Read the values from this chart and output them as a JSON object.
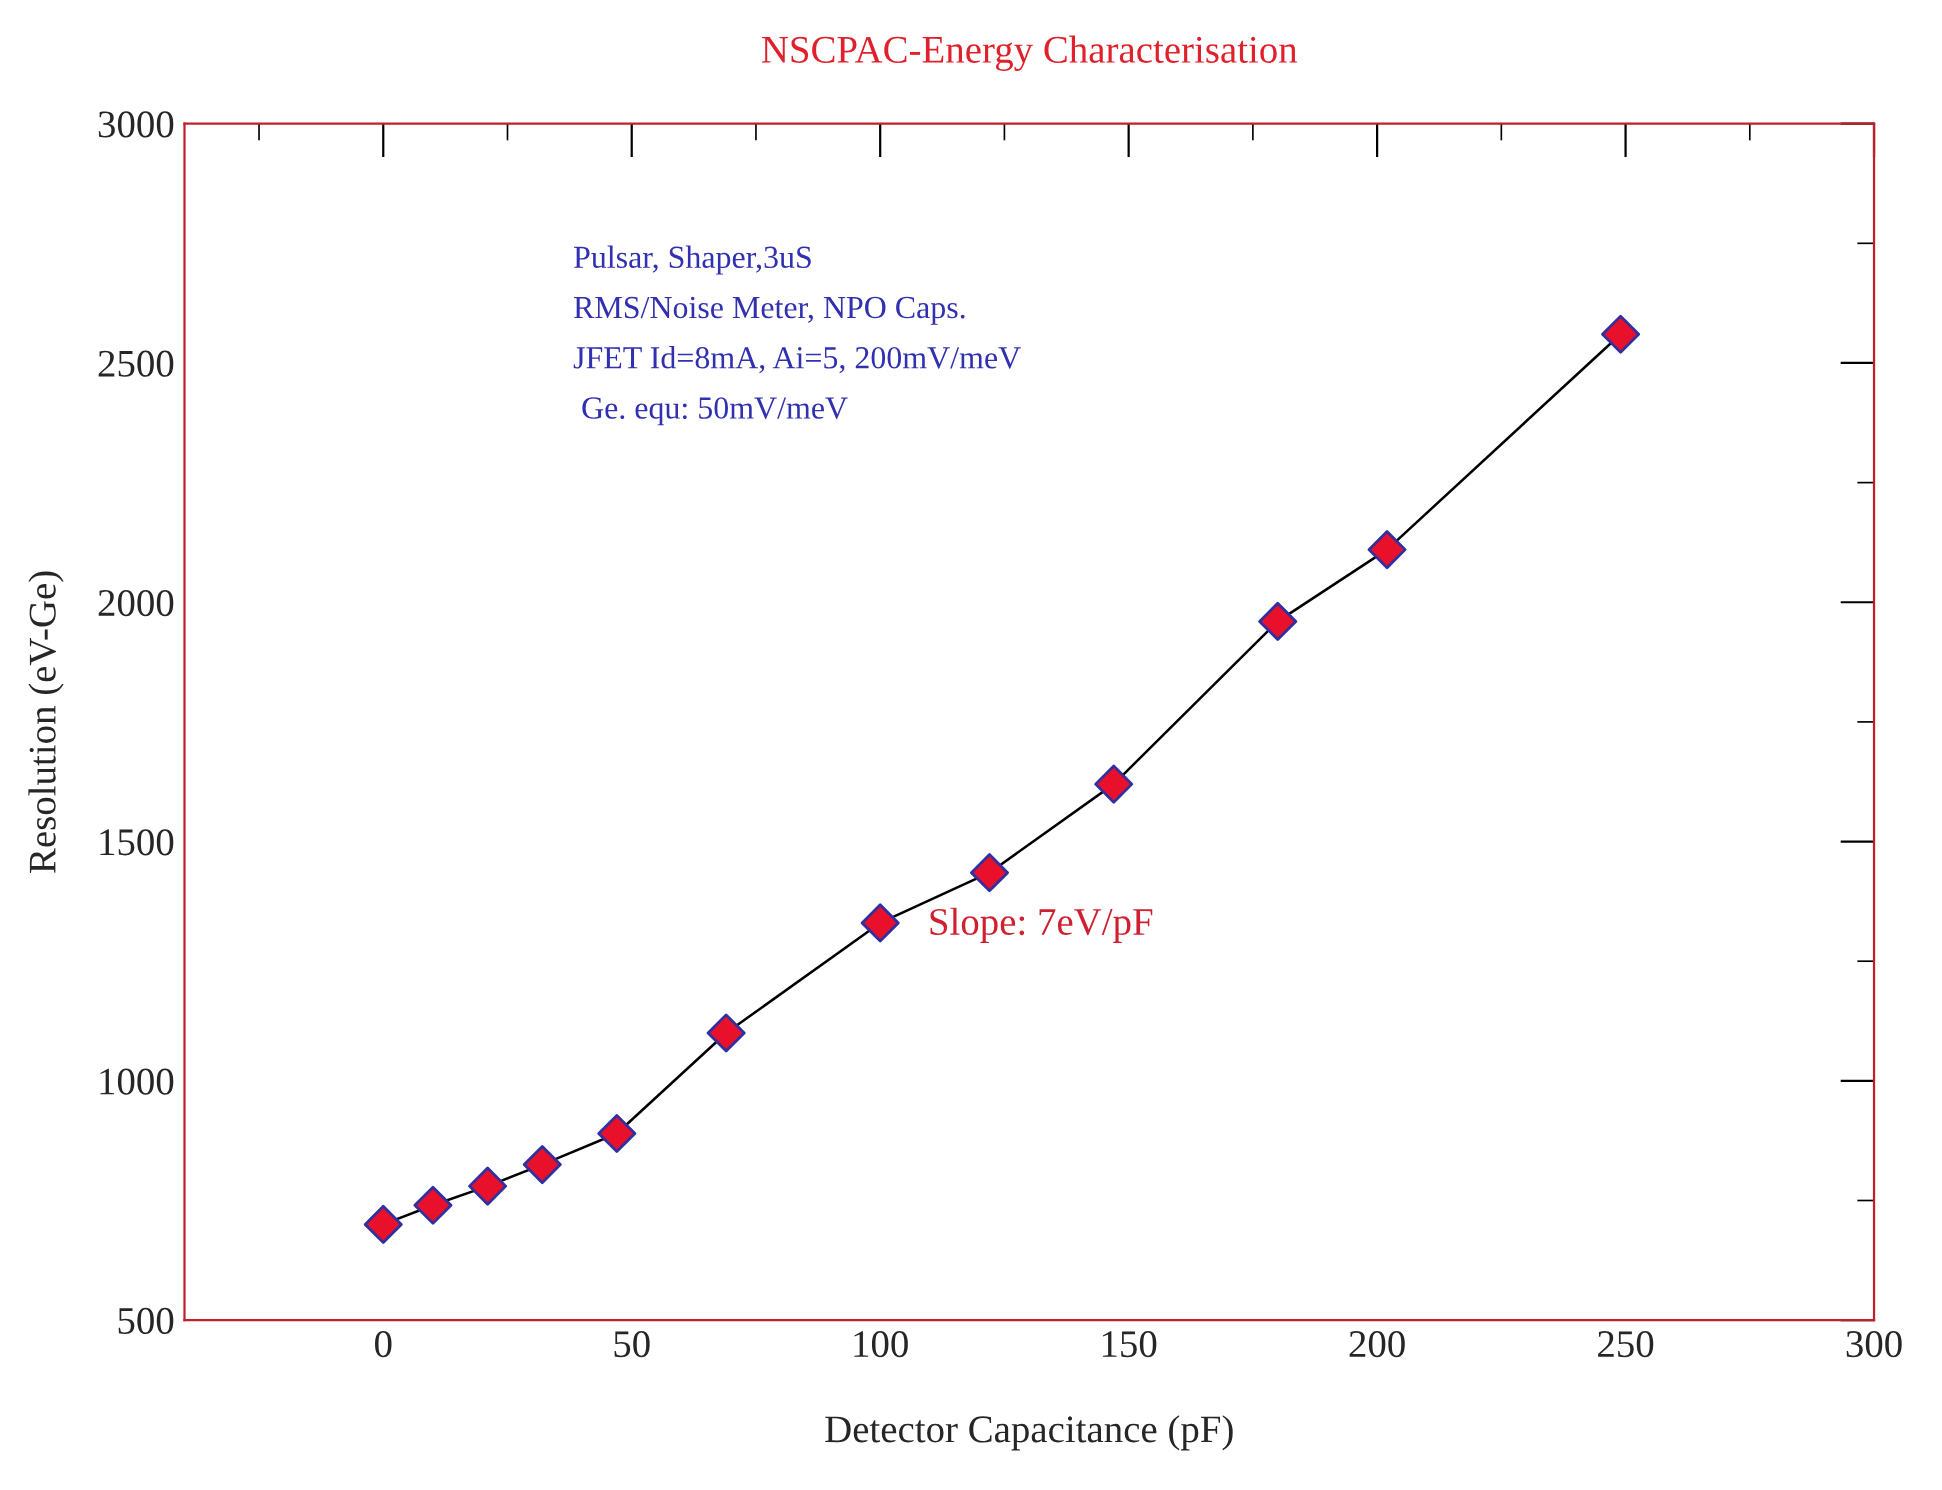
{
  "chart_data": {
    "type": "line",
    "title": "NSCPAC-Energy Characterisation",
    "xlabel": "Detector Capacitance (pF)",
    "ylabel": "Resolution (eV-Ge)",
    "x": [
      0,
      10,
      21,
      32,
      47,
      69,
      100,
      122,
      147,
      180,
      202,
      249
    ],
    "series": [
      {
        "color": "#000000",
        "values": [
          700,
          740,
          780,
          825,
          890,
          1100,
          1330,
          1435,
          1620,
          1960,
          2110,
          2560
        ]
      }
    ],
    "marker": "diamond",
    "xlim": [
      -40,
      300
    ],
    "xticks": [
      0,
      50,
      100,
      150,
      200,
      250,
      300
    ],
    "ylim": [
      500,
      3000
    ],
    "yticks": [
      500,
      1000,
      1500,
      2000,
      2500,
      3000
    ],
    "grid": false,
    "legend": false,
    "annotations": [
      "Pulsar, Shaper,3uS",
      "RMS/Noise Meter, NPO Caps.",
      "JFET Id=8mA, Ai=5, 200mV/meV",
      " Ge. equ: 50mV/meV",
      "Slope: 7eV/pF"
    ]
  }
}
